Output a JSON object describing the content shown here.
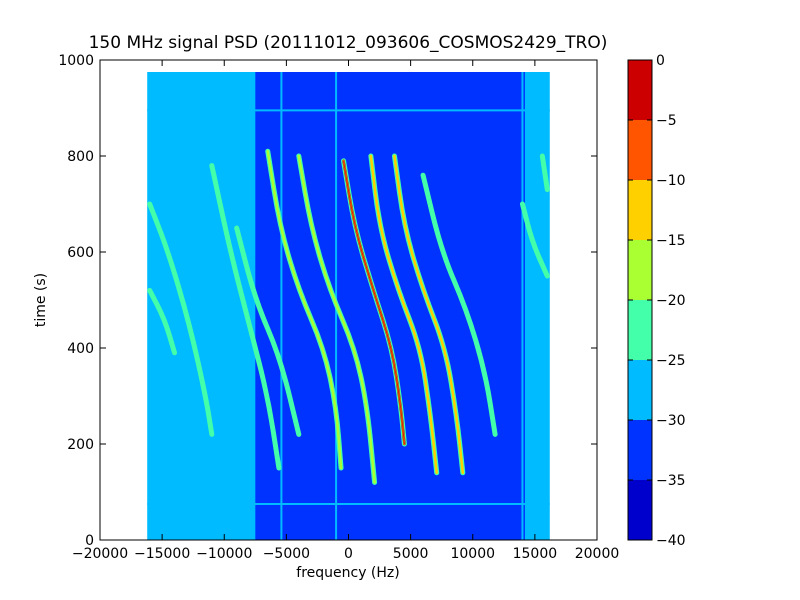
{
  "chart_data": {
    "type": "heatmap",
    "title": "150 MHz signal PSD (20111012_093606_COSMOS2429_TRO)",
    "xlabel": "frequency (Hz)",
    "ylabel": "time (s)",
    "xlim": [
      -20000,
      20000
    ],
    "ylim": [
      0,
      1000
    ],
    "xticks": [
      -20000,
      -15000,
      -10000,
      -5000,
      0,
      5000,
      10000,
      15000,
      20000
    ],
    "xtick_labels": [
      "−20000",
      "−15000",
      "−10000",
      "−5000",
      "0",
      "5000",
      "10000",
      "15000",
      "20000"
    ],
    "yticks": [
      0,
      200,
      400,
      600,
      800,
      1000
    ],
    "ytick_labels": [
      "0",
      "200",
      "400",
      "600",
      "800",
      "1000"
    ],
    "data_extent": {
      "freq": [
        -16200,
        16200
      ],
      "time": [
        0,
        975
      ]
    },
    "grid": false,
    "colorbar": {
      "min": -40,
      "max": 0,
      "levels": [
        -40,
        -35,
        -30,
        -25,
        -20,
        -15,
        -10,
        -5,
        0
      ],
      "tick_labels": [
        "−40",
        "−35",
        "−30",
        "−25",
        "−20",
        "−15",
        "−10",
        "−5",
        "0"
      ],
      "colors": [
        "#0000cc",
        "#0033ff",
        "#00bbff",
        "#44ffaa",
        "#aaff33",
        "#ffd000",
        "#ff5500",
        "#cc0000"
      ]
    },
    "background_levels": {
      "edge_band": -27,
      "center_band": -34,
      "center_band_freq": [
        -7500,
        14200
      ]
    },
    "horizontal_lines": [
      {
        "time": 895,
        "level": -27
      },
      {
        "time": 75,
        "level": -27
      }
    ],
    "vertical_lines": [
      {
        "freq": -5400,
        "level": -27
      },
      {
        "freq": -1000,
        "level": -27
      },
      {
        "freq": 14000,
        "level": -27
      }
    ],
    "traces": [
      {
        "name": "",
        "level": -22,
        "points": [
          [
            -16000,
            700
          ],
          [
            -14500,
            600
          ],
          [
            -12800,
            450
          ],
          [
            -11500,
            300
          ],
          [
            -11000,
            220
          ]
        ]
      },
      {
        "name": "",
        "level": -22,
        "points": [
          [
            -16000,
            520
          ],
          [
            -14800,
            460
          ],
          [
            -14000,
            390
          ]
        ]
      },
      {
        "name": "",
        "level": -22,
        "points": [
          [
            -11000,
            780
          ],
          [
            -9500,
            600
          ],
          [
            -8000,
            450
          ],
          [
            -6500,
            300
          ],
          [
            -5600,
            150
          ]
        ]
      },
      {
        "name": "",
        "level": -22,
        "points": [
          [
            -9000,
            650
          ],
          [
            -7500,
            500
          ],
          [
            -5500,
            380
          ],
          [
            -4000,
            220
          ]
        ]
      },
      {
        "name": "",
        "level": -20,
        "points": [
          [
            -6500,
            810
          ],
          [
            -5500,
            650
          ],
          [
            -4000,
            520
          ],
          [
            -2000,
            400
          ],
          [
            -1000,
            280
          ],
          [
            -600,
            150
          ]
        ]
      },
      {
        "name": "",
        "level": -20,
        "points": [
          [
            -4000,
            800
          ],
          [
            -3000,
            650
          ],
          [
            -1500,
            520
          ],
          [
            500,
            400
          ],
          [
            1500,
            280
          ],
          [
            2100,
            120
          ]
        ]
      },
      {
        "name": "",
        "level": -5,
        "points": [
          [
            -400,
            790
          ],
          [
            500,
            650
          ],
          [
            2000,
            520
          ],
          [
            3500,
            400
          ],
          [
            4200,
            280
          ],
          [
            4500,
            200
          ]
        ]
      },
      {
        "name": "",
        "level": -15,
        "points": [
          [
            1800,
            800
          ],
          [
            2500,
            650
          ],
          [
            4000,
            520
          ],
          [
            5800,
            400
          ],
          [
            6600,
            260
          ],
          [
            7100,
            140
          ]
        ]
      },
      {
        "name": "",
        "level": -15,
        "points": [
          [
            3700,
            800
          ],
          [
            4500,
            650
          ],
          [
            6000,
            520
          ],
          [
            7800,
            400
          ],
          [
            8700,
            260
          ],
          [
            9200,
            140
          ]
        ]
      },
      {
        "name": "",
        "level": -22,
        "points": [
          [
            6000,
            760
          ],
          [
            7500,
            600
          ],
          [
            9500,
            480
          ],
          [
            11000,
            350
          ],
          [
            11800,
            220
          ]
        ]
      },
      {
        "name": "",
        "level": -22,
        "points": [
          [
            14000,
            700
          ],
          [
            14800,
            620
          ],
          [
            16000,
            550
          ]
        ]
      },
      {
        "name": "",
        "level": -22,
        "points": [
          [
            15600,
            800
          ],
          [
            16000,
            730
          ]
        ]
      }
    ]
  }
}
